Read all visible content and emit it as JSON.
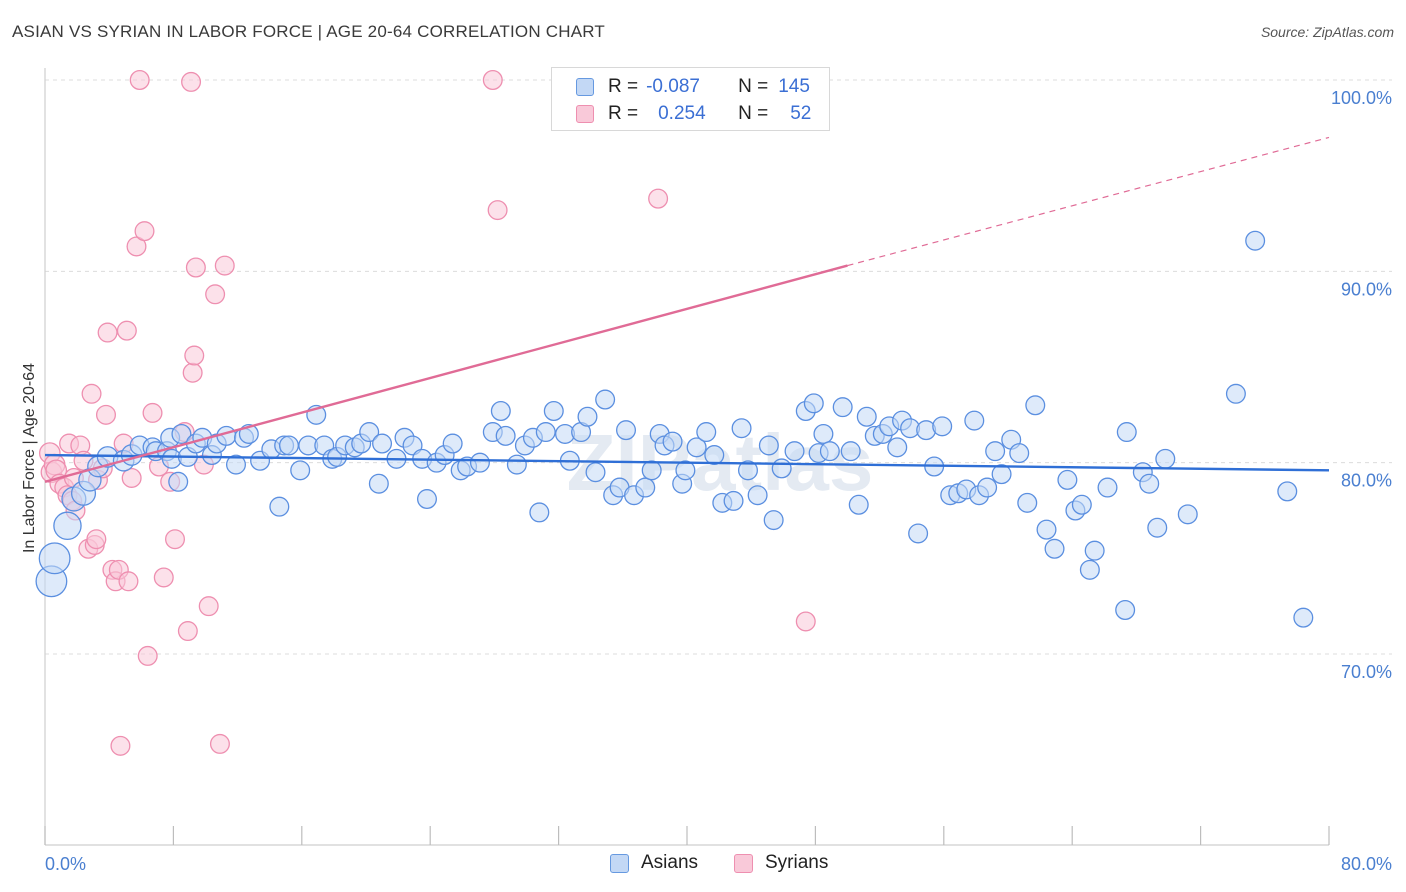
{
  "title": "ASIAN VS SYRIAN IN LABOR FORCE | AGE 20-64 CORRELATION CHART",
  "source": "Source: ZipAtlas.com",
  "watermark": "ZIPatlas",
  "legend": {
    "rows": [
      {
        "r_label": "R =",
        "r_value": "-0.087",
        "n_label": "N =",
        "n_value": "145",
        "color": "#6699e0",
        "fill": "#c3d8f5"
      },
      {
        "r_label": "R =",
        "r_value": "0.254",
        "n_label": "N =",
        "n_value": "52",
        "color": "#ee8fb0",
        "fill": "#f9c9d9"
      }
    ]
  },
  "bottom_legend": [
    {
      "label": "Asians",
      "color": "#6699e0",
      "fill": "#c3d8f5"
    },
    {
      "label": "Syrians",
      "color": "#ee8fb0",
      "fill": "#f9c9d9"
    }
  ],
  "chart_data": {
    "type": "scatter",
    "title": "ASIAN VS SYRIAN IN LABOR FORCE | AGE 20-64 CORRELATION CHART",
    "xlabel": "",
    "ylabel": "In Labor Force | Age 20-64",
    "xlim": [
      0,
      80
    ],
    "ylim": [
      61,
      101
    ],
    "x_tick_labels": [
      "0.0%",
      "80.0%"
    ],
    "y_ticks": [
      70,
      80,
      90,
      100
    ],
    "y_tick_labels": [
      "70.0%",
      "80.0%",
      "90.0%",
      "100.0%"
    ],
    "grid": true,
    "series": [
      {
        "name": "Asians",
        "color": "#5b8fe0",
        "fill": "#c3d8f5",
        "trend": {
          "x": [
            0,
            80
          ],
          "y": [
            80.4,
            79.6
          ],
          "color": "#2f6fd6"
        },
        "points": [
          [
            0.4,
            73.8,
            18
          ],
          [
            0.6,
            75.0,
            18
          ],
          [
            1.4,
            76.7,
            16
          ],
          [
            1.8,
            78.1,
            14
          ],
          [
            2.4,
            78.4,
            14
          ],
          [
            2.8,
            79.1,
            13
          ],
          [
            3.3,
            79.8,
            12
          ],
          [
            3.9,
            80.3,
            12
          ],
          [
            4.9,
            80.1,
            12
          ],
          [
            5.4,
            80.4,
            12
          ],
          [
            5.9,
            80.9,
            11
          ],
          [
            6.7,
            80.8,
            11
          ],
          [
            6.9,
            80.6,
            11
          ],
          [
            7.6,
            80.6,
            11
          ],
          [
            7.8,
            81.3,
            11
          ],
          [
            7.9,
            80.2,
            11
          ],
          [
            8.3,
            79.0,
            11
          ],
          [
            8.5,
            81.5,
            11
          ],
          [
            8.9,
            80.3,
            11
          ],
          [
            9.4,
            81.0,
            11
          ],
          [
            9.8,
            81.3,
            11
          ],
          [
            10.4,
            80.4,
            11
          ],
          [
            10.7,
            81.0,
            11
          ],
          [
            11.3,
            81.4,
            11
          ],
          [
            11.9,
            79.9,
            11
          ],
          [
            12.4,
            81.3,
            11
          ],
          [
            12.7,
            81.5,
            11
          ],
          [
            13.4,
            80.1,
            11
          ],
          [
            14.1,
            80.7,
            11
          ],
          [
            14.6,
            77.7,
            11
          ],
          [
            14.9,
            80.9,
            11
          ],
          [
            15.2,
            80.9,
            11
          ],
          [
            15.9,
            79.6,
            11
          ],
          [
            16.4,
            80.9,
            11
          ],
          [
            16.9,
            82.5,
            11
          ],
          [
            17.4,
            80.9,
            11
          ],
          [
            17.9,
            80.2,
            11
          ],
          [
            18.2,
            80.3,
            11
          ],
          [
            18.7,
            80.9,
            11
          ],
          [
            19.3,
            80.8,
            11
          ],
          [
            19.7,
            81.0,
            11
          ],
          [
            20.2,
            81.6,
            11
          ],
          [
            20.8,
            78.9,
            11
          ],
          [
            21.0,
            81.0,
            11
          ],
          [
            21.9,
            80.2,
            11
          ],
          [
            22.4,
            81.3,
            11
          ],
          [
            22.9,
            80.9,
            11
          ],
          [
            23.5,
            80.2,
            11
          ],
          [
            23.8,
            78.1,
            11
          ],
          [
            24.4,
            80.0,
            11
          ],
          [
            24.9,
            80.4,
            11
          ],
          [
            25.4,
            81.0,
            11
          ],
          [
            25.9,
            79.6,
            11
          ],
          [
            26.3,
            79.8,
            11
          ],
          [
            27.1,
            80.0,
            11
          ],
          [
            27.9,
            81.6,
            11
          ],
          [
            28.4,
            82.7,
            11
          ],
          [
            28.7,
            81.4,
            11
          ],
          [
            29.4,
            79.9,
            11
          ],
          [
            29.9,
            80.9,
            11
          ],
          [
            30.4,
            81.3,
            11
          ],
          [
            30.8,
            77.4,
            11
          ],
          [
            31.2,
            81.6,
            11
          ],
          [
            31.7,
            82.7,
            11
          ],
          [
            32.4,
            81.5,
            11
          ],
          [
            32.7,
            80.1,
            11
          ],
          [
            33.4,
            81.6,
            11
          ],
          [
            33.8,
            82.4,
            11
          ],
          [
            34.3,
            79.5,
            11
          ],
          [
            34.9,
            83.3,
            11
          ],
          [
            35.4,
            78.3,
            11
          ],
          [
            35.8,
            78.7,
            11
          ],
          [
            36.2,
            81.7,
            11
          ],
          [
            36.7,
            78.3,
            11
          ],
          [
            37.4,
            78.7,
            11
          ],
          [
            37.8,
            79.6,
            11
          ],
          [
            38.3,
            81.5,
            11
          ],
          [
            38.6,
            80.9,
            11
          ],
          [
            39.1,
            81.1,
            11
          ],
          [
            39.7,
            78.9,
            11
          ],
          [
            39.9,
            79.6,
            11
          ],
          [
            40.6,
            80.8,
            11
          ],
          [
            41.2,
            81.6,
            11
          ],
          [
            41.7,
            80.4,
            11
          ],
          [
            42.2,
            77.9,
            11
          ],
          [
            42.9,
            78.0,
            11
          ],
          [
            43.4,
            81.8,
            11
          ],
          [
            43.8,
            79.6,
            11
          ],
          [
            44.4,
            78.3,
            11
          ],
          [
            45.1,
            80.9,
            11
          ],
          [
            45.4,
            77.0,
            11
          ],
          [
            45.9,
            79.7,
            11
          ],
          [
            46.7,
            80.6,
            11
          ],
          [
            47.4,
            82.7,
            11
          ],
          [
            47.9,
            83.1,
            11
          ],
          [
            48.2,
            80.5,
            11
          ],
          [
            48.5,
            81.5,
            11
          ],
          [
            48.9,
            80.6,
            11
          ],
          [
            49.7,
            82.9,
            11
          ],
          [
            50.2,
            80.6,
            11
          ],
          [
            50.7,
            77.8,
            11
          ],
          [
            51.2,
            82.4,
            11
          ],
          [
            51.7,
            81.4,
            11
          ],
          [
            52.2,
            81.5,
            11
          ],
          [
            52.6,
            81.9,
            11
          ],
          [
            53.1,
            80.8,
            11
          ],
          [
            53.4,
            82.2,
            11
          ],
          [
            53.9,
            81.8,
            11
          ],
          [
            54.4,
            76.3,
            11
          ],
          [
            54.9,
            81.7,
            11
          ],
          [
            55.4,
            79.8,
            11
          ],
          [
            55.9,
            81.9,
            11
          ],
          [
            56.4,
            78.3,
            11
          ],
          [
            56.9,
            78.4,
            11
          ],
          [
            57.4,
            78.6,
            11
          ],
          [
            57.9,
            82.2,
            11
          ],
          [
            58.2,
            78.3,
            11
          ],
          [
            58.7,
            78.7,
            11
          ],
          [
            59.2,
            80.6,
            11
          ],
          [
            59.6,
            79.4,
            11
          ],
          [
            60.2,
            81.2,
            11
          ],
          [
            60.7,
            80.5,
            11
          ],
          [
            61.2,
            77.9,
            11
          ],
          [
            61.7,
            83.0,
            11
          ],
          [
            62.4,
            76.5,
            11
          ],
          [
            62.9,
            75.5,
            11
          ],
          [
            63.7,
            79.1,
            11
          ],
          [
            64.2,
            77.5,
            11
          ],
          [
            64.6,
            77.8,
            11
          ],
          [
            65.1,
            74.4,
            11
          ],
          [
            65.4,
            75.4,
            11
          ],
          [
            66.2,
            78.7,
            11
          ],
          [
            67.3,
            72.3,
            11
          ],
          [
            67.4,
            81.6,
            11
          ],
          [
            68.4,
            79.5,
            11
          ],
          [
            68.8,
            78.9,
            11
          ],
          [
            69.3,
            76.6,
            11
          ],
          [
            69.8,
            80.2,
            11
          ],
          [
            71.2,
            77.3,
            11
          ],
          [
            74.2,
            83.6,
            11
          ],
          [
            75.4,
            91.6,
            11
          ],
          [
            77.4,
            78.5,
            11
          ],
          [
            78.4,
            71.9,
            11
          ]
        ]
      },
      {
        "name": "Syrians",
        "color": "#ee8fb0",
        "fill": "#f9c9d9",
        "trend": {
          "x": [
            0,
            50
          ],
          "y": [
            79.0,
            90.3
          ],
          "dashed_to": [
            80,
            97.0
          ],
          "color": "#e06b96"
        },
        "points": [
          [
            0.3,
            80.5,
            12
          ],
          [
            0.4,
            79.5,
            12
          ],
          [
            0.6,
            79.9,
            12
          ],
          [
            0.7,
            79.6,
            12
          ],
          [
            0.9,
            78.9,
            11
          ],
          [
            1.2,
            78.7,
            11
          ],
          [
            1.4,
            78.3,
            11
          ],
          [
            1.5,
            81.0,
            11
          ],
          [
            1.7,
            78.0,
            11
          ],
          [
            1.8,
            79.2,
            11
          ],
          [
            1.9,
            77.5,
            11
          ],
          [
            2.2,
            80.9,
            11
          ],
          [
            2.4,
            80.1,
            11
          ],
          [
            2.7,
            75.5,
            11
          ],
          [
            2.9,
            83.6,
            11
          ],
          [
            3.1,
            75.7,
            11
          ],
          [
            3.2,
            76.0,
            11
          ],
          [
            3.3,
            79.1,
            11
          ],
          [
            3.6,
            79.7,
            11
          ],
          [
            3.8,
            82.5,
            11
          ],
          [
            3.9,
            86.8,
            11
          ],
          [
            4.2,
            74.4,
            11
          ],
          [
            4.4,
            73.8,
            11
          ],
          [
            4.6,
            74.4,
            11
          ],
          [
            4.7,
            65.2,
            11
          ],
          [
            4.9,
            81.0,
            11
          ],
          [
            5.1,
            86.9,
            11
          ],
          [
            5.2,
            73.8,
            11
          ],
          [
            5.4,
            79.2,
            11
          ],
          [
            5.7,
            91.3,
            11
          ],
          [
            5.9,
            100.0,
            11
          ],
          [
            6.2,
            92.1,
            11
          ],
          [
            6.7,
            82.6,
            11
          ],
          [
            7.1,
            79.8,
            11
          ],
          [
            7.4,
            74.0,
            11
          ],
          [
            7.8,
            79.0,
            11
          ],
          [
            8.1,
            76.0,
            11
          ],
          [
            8.7,
            81.6,
            11
          ],
          [
            8.9,
            71.2,
            11
          ],
          [
            9.1,
            99.9,
            11
          ],
          [
            9.2,
            84.7,
            11
          ],
          [
            9.3,
            85.6,
            11
          ],
          [
            9.4,
            90.2,
            11
          ],
          [
            9.9,
            79.9,
            11
          ],
          [
            10.2,
            72.5,
            11
          ],
          [
            10.6,
            88.8,
            11
          ],
          [
            10.9,
            65.3,
            11
          ],
          [
            11.2,
            90.3,
            11
          ],
          [
            27.9,
            100.0,
            11
          ],
          [
            28.2,
            93.2,
            11
          ],
          [
            38.2,
            93.8,
            11
          ],
          [
            47.4,
            71.7,
            11
          ],
          [
            6.4,
            69.9,
            11
          ]
        ]
      }
    ]
  }
}
